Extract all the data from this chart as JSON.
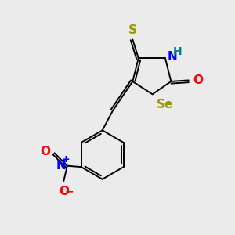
{
  "background_color": "#ebebeb",
  "bond_color": "#000000",
  "atom_colors": {
    "S": "#999900",
    "N": "#0000ff",
    "H": "#008080",
    "Se": "#999900",
    "O": "#ff0000",
    "NO2_N": "#0000ff",
    "NO2_O": "#ff0000"
  },
  "font_size": 10,
  "figsize": [
    3.0,
    3.0
  ],
  "dpi": 100
}
